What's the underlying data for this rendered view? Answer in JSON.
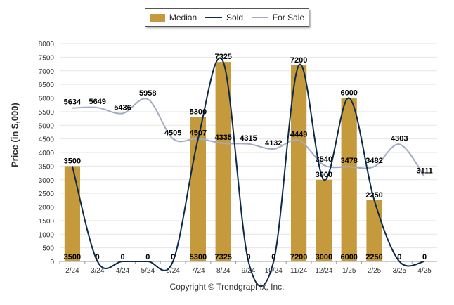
{
  "chart_data": {
    "type": "bar",
    "categories": [
      "2/24",
      "3/24",
      "4/24",
      "5/24",
      "6/24",
      "7/24",
      "8/24",
      "9/24",
      "10/24",
      "11/24",
      "12/24",
      "1/25",
      "2/25",
      "3/25",
      "4/25"
    ],
    "ylabel": "Price (in $,000)",
    "ylim": [
      0,
      8000
    ],
    "yticks": [
      0,
      500,
      1000,
      1500,
      2000,
      2500,
      3000,
      3500,
      4000,
      4500,
      5000,
      5500,
      6000,
      6500,
      7000,
      7500,
      8000
    ],
    "grid": true,
    "legend": "top-center",
    "series": [
      {
        "name": "Median",
        "kind": "bar",
        "color": "#c49a3c",
        "values": [
          3500,
          0,
          0,
          0,
          0,
          5300,
          7325,
          0,
          0,
          7200,
          3000,
          6000,
          2250,
          0,
          0
        ]
      },
      {
        "name": "Sold",
        "kind": "line",
        "color": "#0d2a4a",
        "values": [
          3500,
          0,
          0,
          0,
          0,
          4507,
          7325,
          0,
          0,
          7200,
          3000,
          6000,
          2250,
          0,
          0
        ]
      },
      {
        "name": "For Sale",
        "kind": "line",
        "color": "#a3abc2",
        "values": [
          5634,
          5649,
          5436,
          5958,
          4505,
          4507,
          4335,
          4315,
          4132,
          4449,
          3540,
          3478,
          3482,
          4303,
          3111
        ]
      }
    ],
    "bottom_labels": [
      "3500",
      "0",
      "0",
      "0",
      "0",
      "5300",
      "7325",
      "0",
      "0",
      "7200",
      "3000",
      "6000",
      "2250",
      "0",
      "0"
    ]
  },
  "footer": "Copyright © Trendgraphix, Inc."
}
